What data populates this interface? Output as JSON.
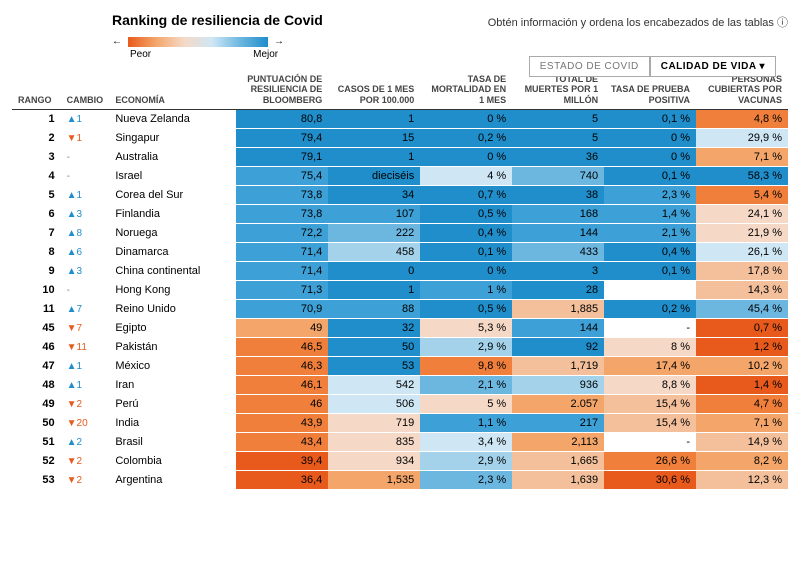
{
  "title": "Ranking de resiliencia de Covid",
  "subtitle": "Obtén información y ordena los encabezados de las tablas",
  "legend": {
    "worst": "Peor",
    "best": "Mejor",
    "arrow_left": "←",
    "arrow_right": "→"
  },
  "tabs": {
    "covid": "ESTADO DE COVID",
    "life": "CALIDAD DE VIDA ▾"
  },
  "columns": {
    "rank": "RANGO",
    "change": "CAMBIO",
    "economy": "ECONOMÍA",
    "score": "PUNTUACIÓN DE RESILIENCIA DE BLOOMBERG",
    "cases": "CASOS DE 1 MES POR 100.000",
    "mort": "TASA DE MORTALIDAD EN 1 MES",
    "deaths": "TOTAL DE MUERTES POR 1 MILLÓN",
    "pos": "TASA DE PRUEBA POSITIVA",
    "vax": "PERSONAS CUBIERTAS POR VACUNAS"
  },
  "palette": {
    "b5": "#1f8ecb",
    "b4": "#3da0d6",
    "b3": "#6cb7e0",
    "b2": "#a3d2ea",
    "b1": "#cfe7f5",
    "n": "#f5ece4",
    "o1": "#f5d9c6",
    "o2": "#f4c09b",
    "o3": "#f4a66a",
    "o4": "#ef7f3a",
    "o5": "#e85a1c",
    "white": "#ffffff"
  },
  "rows": [
    {
      "rank": "1",
      "chg": "▲1",
      "chg_c": "up",
      "econ": "Nueva Zelanda",
      "score": "80,8",
      "score_c": "b5",
      "cases": "1",
      "cases_c": "b5",
      "mort": "0 %",
      "mort_c": "b5",
      "deaths": "5",
      "deaths_c": "b5",
      "pos": "0,1 %",
      "pos_c": "b5",
      "vax": "4,8 %",
      "vax_c": "o4"
    },
    {
      "rank": "2",
      "chg": "▼1",
      "chg_c": "dn",
      "econ": "Singapur",
      "score": "79,4",
      "score_c": "b5",
      "cases": "15",
      "cases_c": "b5",
      "mort": "0,2 %",
      "mort_c": "b5",
      "deaths": "5",
      "deaths_c": "b5",
      "pos": "0 %",
      "pos_c": "b5",
      "vax": "29,9 %",
      "vax_c": "b1"
    },
    {
      "rank": "3",
      "chg": "-",
      "chg_c": "eq",
      "econ": "Australia",
      "score": "79,1",
      "score_c": "b5",
      "cases": "1",
      "cases_c": "b5",
      "mort": "0 %",
      "mort_c": "b5",
      "deaths": "36",
      "deaths_c": "b5",
      "pos": "0 %",
      "pos_c": "b5",
      "vax": "7,1 %",
      "vax_c": "o3"
    },
    {
      "rank": "4",
      "chg": "-",
      "chg_c": "eq",
      "econ": "Israel",
      "score": "75,4",
      "score_c": "b4",
      "cases": "dieciséis",
      "cases_c": "b5",
      "mort": "4 %",
      "mort_c": "b1",
      "deaths": "740",
      "deaths_c": "b3",
      "pos": "0,1 %",
      "pos_c": "b5",
      "vax": "58,3 %",
      "vax_c": "b5"
    },
    {
      "rank": "5",
      "chg": "▲1",
      "chg_c": "up",
      "econ": "Corea del Sur",
      "score": "73,8",
      "score_c": "b4",
      "cases": "34",
      "cases_c": "b5",
      "mort": "0,7 %",
      "mort_c": "b5",
      "deaths": "38",
      "deaths_c": "b5",
      "pos": "2,3 %",
      "pos_c": "b4",
      "vax": "5,4 %",
      "vax_c": "o4"
    },
    {
      "rank": "6",
      "chg": "▲3",
      "chg_c": "up",
      "econ": "Finlandia",
      "score": "73,8",
      "score_c": "b4",
      "cases": "107",
      "cases_c": "b4",
      "mort": "0,5 %",
      "mort_c": "b5",
      "deaths": "168",
      "deaths_c": "b4",
      "pos": "1,4 %",
      "pos_c": "b4",
      "vax": "24,1 %",
      "vax_c": "o1"
    },
    {
      "rank": "7",
      "chg": "▲8",
      "chg_c": "up",
      "econ": "Noruega",
      "score": "72,2",
      "score_c": "b4",
      "cases": "222",
      "cases_c": "b3",
      "mort": "0,4 %",
      "mort_c": "b5",
      "deaths": "144",
      "deaths_c": "b4",
      "pos": "2,1 %",
      "pos_c": "b4",
      "vax": "21,9 %",
      "vax_c": "o1"
    },
    {
      "rank": "8",
      "chg": "▲6",
      "chg_c": "up",
      "econ": "Dinamarca",
      "score": "71,4",
      "score_c": "b4",
      "cases": "458",
      "cases_c": "b2",
      "mort": "0,1 %",
      "mort_c": "b5",
      "deaths": "433",
      "deaths_c": "b3",
      "pos": "0,4 %",
      "pos_c": "b5",
      "vax": "26,1 %",
      "vax_c": "b1"
    },
    {
      "rank": "9",
      "chg": "▲3",
      "chg_c": "up",
      "econ": "China continental",
      "score": "71,4",
      "score_c": "b4",
      "cases": "0",
      "cases_c": "b5",
      "mort": "0 %",
      "mort_c": "b5",
      "deaths": "3",
      "deaths_c": "b5",
      "pos": "0,1 %",
      "pos_c": "b5",
      "vax": "17,8 %",
      "vax_c": "o2"
    },
    {
      "rank": "10",
      "chg": "-",
      "chg_c": "eq",
      "econ": "Hong Kong",
      "score": "71,3",
      "score_c": "b4",
      "cases": "1",
      "cases_c": "b5",
      "mort": "1 %",
      "mort_c": "b4",
      "deaths": "28",
      "deaths_c": "b5",
      "pos": "",
      "pos_c": "white",
      "vax": "14,3 %",
      "vax_c": "o2"
    },
    {
      "rank": "11",
      "chg": "▲7",
      "chg_c": "up",
      "econ": "Reino Unido",
      "score": "70,9",
      "score_c": "b4",
      "cases": "88",
      "cases_c": "b4",
      "mort": "0,5 %",
      "mort_c": "b5",
      "deaths": "1,885",
      "deaths_c": "o2",
      "pos": "0,2 %",
      "pos_c": "b5",
      "vax": "45,4 %",
      "vax_c": "b3"
    },
    {
      "rank": "45",
      "chg": "▼7",
      "chg_c": "dn",
      "econ": "Egipto",
      "score": "49",
      "score_c": "o3",
      "cases": "32",
      "cases_c": "b5",
      "mort": "5,3 %",
      "mort_c": "o1",
      "deaths": "144",
      "deaths_c": "b4",
      "pos": "-",
      "pos_c": "white",
      "vax": "0,7 %",
      "vax_c": "o5"
    },
    {
      "rank": "46",
      "chg": "▼11",
      "chg_c": "dn",
      "econ": "Pakistán",
      "score": "46,5",
      "score_c": "o4",
      "cases": "50",
      "cases_c": "b5",
      "mort": "2,9 %",
      "mort_c": "b2",
      "deaths": "92",
      "deaths_c": "b5",
      "pos": "8 %",
      "pos_c": "o1",
      "vax": "1,2 %",
      "vax_c": "o5"
    },
    {
      "rank": "47",
      "chg": "▲1",
      "chg_c": "up",
      "econ": "México",
      "score": "46,3",
      "score_c": "o4",
      "cases": "53",
      "cases_c": "b5",
      "mort": "9,8 %",
      "mort_c": "o4",
      "deaths": "1,719",
      "deaths_c": "o2",
      "pos": "17,4 %",
      "pos_c": "o3",
      "vax": "10,2 %",
      "vax_c": "o3"
    },
    {
      "rank": "48",
      "chg": "▲1",
      "chg_c": "up",
      "econ": "Iran",
      "score": "46,1",
      "score_c": "o4",
      "cases": "542",
      "cases_c": "b1",
      "mort": "2,1 %",
      "mort_c": "b3",
      "deaths": "936",
      "deaths_c": "b2",
      "pos": "8,8 %",
      "pos_c": "o1",
      "vax": "1,4 %",
      "vax_c": "o5"
    },
    {
      "rank": "49",
      "chg": "▼2",
      "chg_c": "dn",
      "econ": "Perú",
      "score": "46",
      "score_c": "o4",
      "cases": "506",
      "cases_c": "b1",
      "mort": "5 %",
      "mort_c": "o1",
      "deaths": "2.057",
      "deaths_c": "o3",
      "pos": "15,4 %",
      "pos_c": "o2",
      "vax": "4,7 %",
      "vax_c": "o4"
    },
    {
      "rank": "50",
      "chg": "▼20",
      "chg_c": "dn",
      "econ": "India",
      "score": "43,9",
      "score_c": "o4",
      "cases": "719",
      "cases_c": "o1",
      "mort": "1,1 %",
      "mort_c": "b4",
      "deaths": "217",
      "deaths_c": "b4",
      "pos": "15,4 %",
      "pos_c": "o2",
      "vax": "7,1 %",
      "vax_c": "o3"
    },
    {
      "rank": "51",
      "chg": "▲2",
      "chg_c": "up",
      "econ": "Brasil",
      "score": "43,4",
      "score_c": "o4",
      "cases": "835",
      "cases_c": "o1",
      "mort": "3,4 %",
      "mort_c": "b1",
      "deaths": "2,113",
      "deaths_c": "o3",
      "pos": "-",
      "pos_c": "white",
      "vax": "14,9 %",
      "vax_c": "o2"
    },
    {
      "rank": "52",
      "chg": "▼2",
      "chg_c": "dn",
      "econ": "Colombia",
      "score": "39,4",
      "score_c": "o5",
      "cases": "934",
      "cases_c": "o1",
      "mort": "2,9 %",
      "mort_c": "b2",
      "deaths": "1,665",
      "deaths_c": "o2",
      "pos": "26,6 %",
      "pos_c": "o4",
      "vax": "8,2 %",
      "vax_c": "o3"
    },
    {
      "rank": "53",
      "chg": "▼2",
      "chg_c": "dn",
      "econ": "Argentina",
      "score": "36,4",
      "score_c": "o5",
      "cases": "1,535",
      "cases_c": "o3",
      "mort": "2,3 %",
      "mort_c": "b3",
      "deaths": "1,639",
      "deaths_c": "o2",
      "pos": "30,6 %",
      "pos_c": "o5",
      "vax": "12,3 %",
      "vax_c": "o2"
    }
  ]
}
